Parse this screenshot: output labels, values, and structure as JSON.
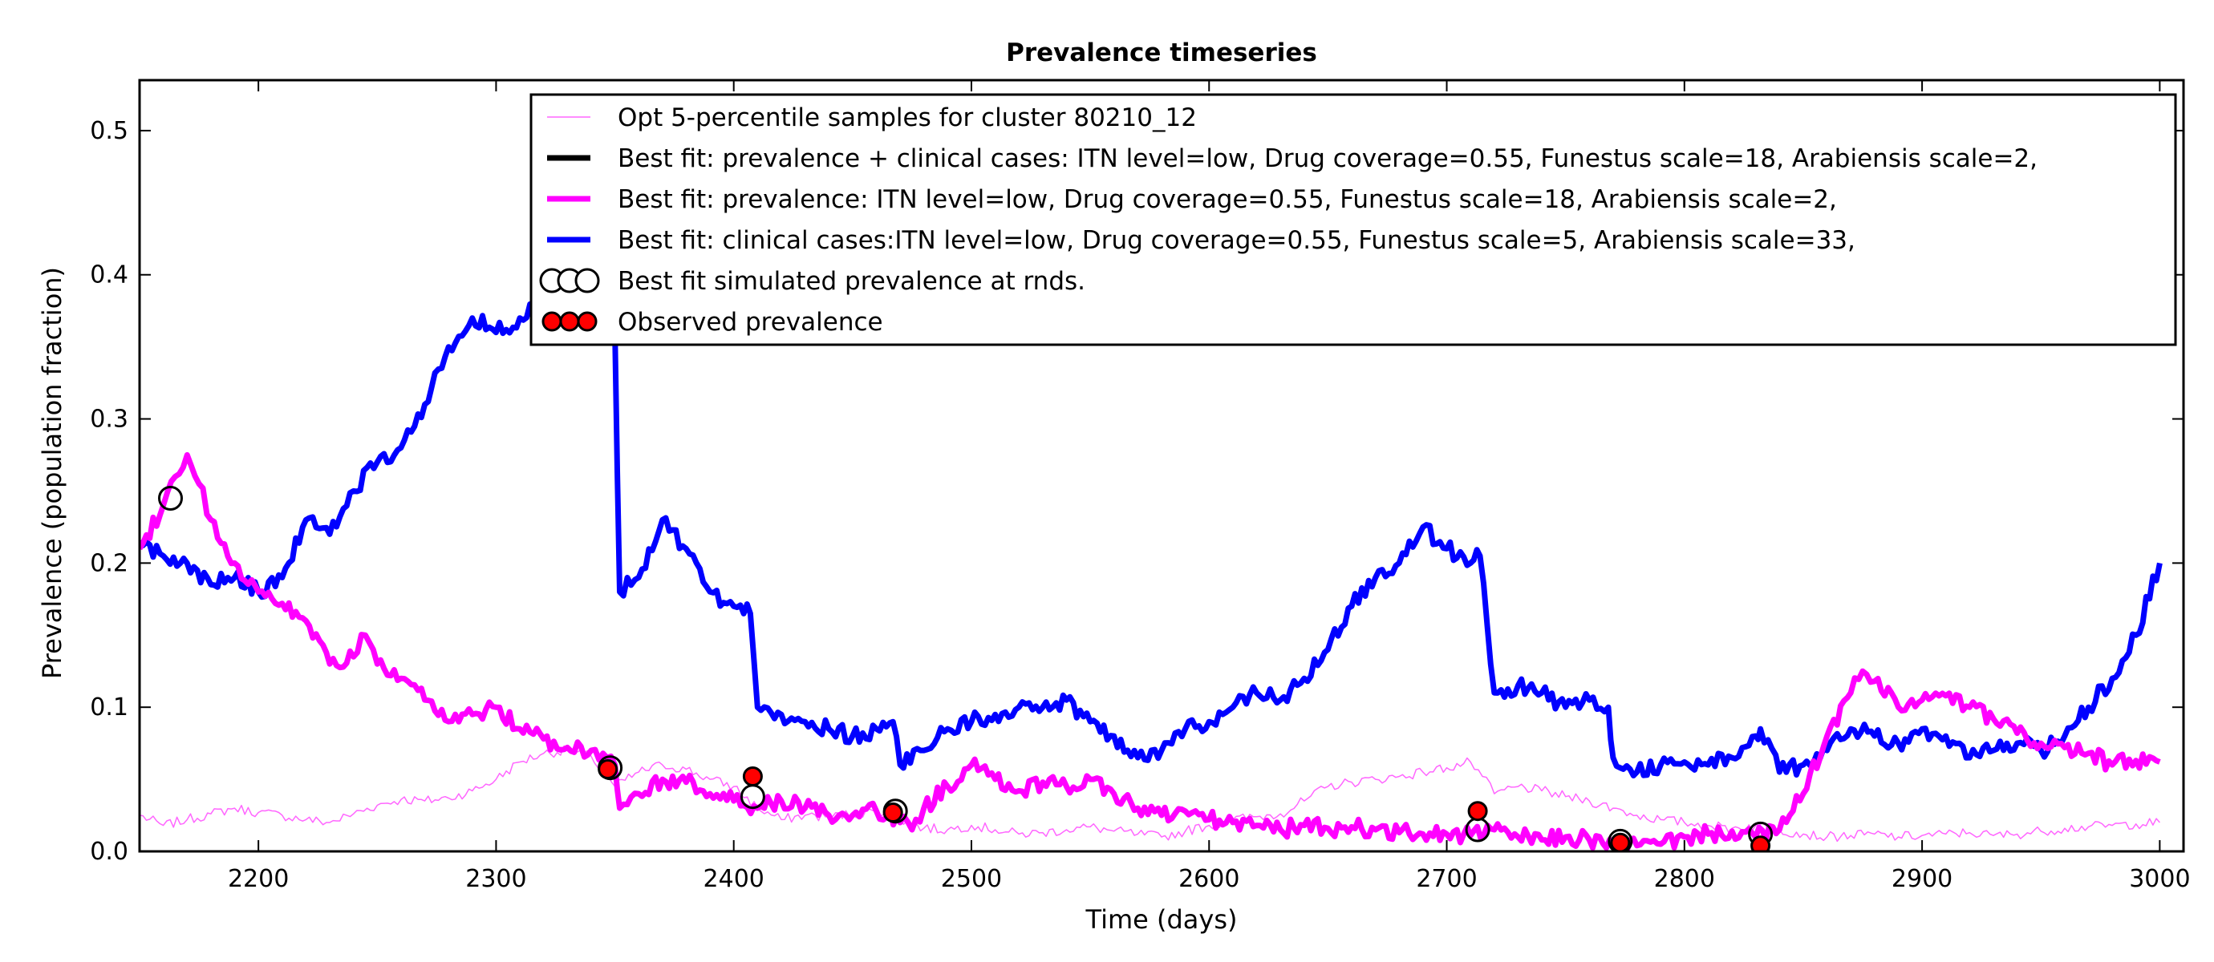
{
  "chart_data": {
    "type": "line",
    "title": "Prevalence timeseries",
    "xlabel": "Time (days)",
    "ylabel": "Prevalence (population fraction)",
    "xlim": [
      2150,
      3010
    ],
    "ylim": [
      0.0,
      0.535
    ],
    "xticks": [
      {
        "value": 2200,
        "label": "2200"
      },
      {
        "value": 2300,
        "label": "2300"
      },
      {
        "value": 2400,
        "label": "2400"
      },
      {
        "value": 2500,
        "label": "2500"
      },
      {
        "value": 2600,
        "label": "2600"
      },
      {
        "value": 2700,
        "label": "2700"
      },
      {
        "value": 2800,
        "label": "2800"
      },
      {
        "value": 2900,
        "label": "2900"
      },
      {
        "value": 3000,
        "label": "3000"
      }
    ],
    "yticks": [
      {
        "value": 0.0,
        "label": "0.0"
      },
      {
        "value": 0.1,
        "label": "0.1"
      },
      {
        "value": 0.2,
        "label": "0.2"
      },
      {
        "value": 0.3,
        "label": "0.3"
      },
      {
        "value": 0.4,
        "label": "0.4"
      },
      {
        "value": 0.5,
        "label": "0.5"
      }
    ],
    "grid": false,
    "legend_placement": "top-right",
    "series": [
      {
        "name": "Opt 5-percentile samples for cluster 80210_12",
        "kind": "line",
        "color": "#ff66ff",
        "thin": true,
        "x": [
          2150,
          2160,
          2170,
          2180,
          2190,
          2200,
          2210,
          2220,
          2230,
          2240,
          2250,
          2260,
          2270,
          2280,
          2290,
          2300,
          2310,
          2320,
          2330,
          2340,
          2350,
          2360,
          2370,
          2380,
          2390,
          2400,
          2410,
          2420,
          2430,
          2440,
          2450,
          2460,
          2470,
          2480,
          2490,
          2500,
          2510,
          2520,
          2530,
          2540,
          2550,
          2560,
          2570,
          2580,
          2590,
          2600,
          2610,
          2620,
          2630,
          2640,
          2650,
          2660,
          2670,
          2680,
          2690,
          2700,
          2710,
          2715,
          2720,
          2730,
          2740,
          2750,
          2760,
          2770,
          2780,
          2790,
          2800,
          2810,
          2820,
          2830,
          2840,
          2850,
          2860,
          2870,
          2880,
          2890,
          2900,
          2910,
          2920,
          2930,
          2940,
          2950,
          2960,
          2970,
          2980,
          2990,
          3000
        ],
        "y": [
          0.025,
          0.018,
          0.022,
          0.026,
          0.03,
          0.027,
          0.025,
          0.022,
          0.02,
          0.026,
          0.032,
          0.036,
          0.035,
          0.037,
          0.042,
          0.05,
          0.062,
          0.068,
          0.07,
          0.066,
          0.045,
          0.055,
          0.06,
          0.057,
          0.05,
          0.045,
          0.03,
          0.022,
          0.025,
          0.024,
          0.026,
          0.028,
          0.022,
          0.016,
          0.015,
          0.018,
          0.015,
          0.012,
          0.013,
          0.015,
          0.017,
          0.014,
          0.012,
          0.01,
          0.014,
          0.018,
          0.022,
          0.024,
          0.026,
          0.035,
          0.045,
          0.048,
          0.05,
          0.052,
          0.055,
          0.058,
          0.062,
          0.052,
          0.04,
          0.045,
          0.042,
          0.038,
          0.035,
          0.03,
          0.025,
          0.022,
          0.02,
          0.018,
          0.016,
          0.018,
          0.015,
          0.012,
          0.01,
          0.011,
          0.012,
          0.01,
          0.011,
          0.012,
          0.013,
          0.011,
          0.012,
          0.014,
          0.016,
          0.017,
          0.018,
          0.019,
          0.02
        ]
      },
      {
        "name": "Best fit: prevalence + clinical cases: ITN level=low, Drug coverage=0.55, Funestus scale=18, Arabiensis scale=2,",
        "kind": "line",
        "color": "#000000",
        "thin": false,
        "x": [],
        "y": []
      },
      {
        "name": "Best fit: prevalence: ITN level=low, Drug coverage=0.55, Funestus scale=18, Arabiensis scale=2,",
        "kind": "line",
        "color": "#ff00ff",
        "thin": false,
        "x": [
          2150,
          2160,
          2165,
          2170,
          2175,
          2180,
          2190,
          2200,
          2210,
          2220,
          2230,
          2240,
          2245,
          2250,
          2260,
          2270,
          2280,
          2290,
          2300,
          2310,
          2320,
          2330,
          2340,
          2345,
          2350,
          2352,
          2360,
          2370,
          2380,
          2390,
          2400,
          2410,
          2420,
          2430,
          2440,
          2450,
          2460,
          2470,
          2475,
          2480,
          2490,
          2500,
          2510,
          2520,
          2530,
          2540,
          2550,
          2560,
          2570,
          2580,
          2590,
          2600,
          2610,
          2620,
          2630,
          2640,
          2650,
          2660,
          2670,
          2680,
          2690,
          2700,
          2710,
          2720,
          2730,
          2740,
          2750,
          2760,
          2770,
          2780,
          2790,
          2800,
          2810,
          2820,
          2830,
          2840,
          2850,
          2860,
          2870,
          2875,
          2880,
          2890,
          2900,
          2910,
          2920,
          2930,
          2940,
          2950,
          2960,
          2970,
          2980,
          2990,
          3000
        ],
        "y": [
          0.21,
          0.24,
          0.26,
          0.275,
          0.255,
          0.23,
          0.2,
          0.18,
          0.172,
          0.16,
          0.13,
          0.135,
          0.15,
          0.13,
          0.12,
          0.105,
          0.09,
          0.095,
          0.1,
          0.085,
          0.078,
          0.072,
          0.07,
          0.068,
          0.06,
          0.03,
          0.04,
          0.05,
          0.048,
          0.04,
          0.035,
          0.03,
          0.035,
          0.03,
          0.025,
          0.025,
          0.028,
          0.02,
          0.015,
          0.03,
          0.045,
          0.06,
          0.05,
          0.042,
          0.048,
          0.045,
          0.05,
          0.04,
          0.03,
          0.025,
          0.028,
          0.022,
          0.02,
          0.018,
          0.015,
          0.018,
          0.016,
          0.017,
          0.015,
          0.013,
          0.012,
          0.012,
          0.011,
          0.015,
          0.01,
          0.008,
          0.01,
          0.008,
          0.005,
          0.004,
          0.005,
          0.01,
          0.012,
          0.014,
          0.01,
          0.015,
          0.04,
          0.08,
          0.11,
          0.125,
          0.118,
          0.1,
          0.105,
          0.108,
          0.1,
          0.092,
          0.082,
          0.075,
          0.072,
          0.068,
          0.06,
          0.063,
          0.062
        ]
      },
      {
        "name": "Best fit: clinical cases:ITN level=low, Drug coverage=0.55, Funestus scale=5, Arabiensis scale=33,",
        "kind": "line",
        "color": "#0000ff",
        "thin": false,
        "x": [
          2150,
          2160,
          2170,
          2180,
          2190,
          2200,
          2210,
          2220,
          2230,
          2240,
          2250,
          2260,
          2270,
          2280,
          2290,
          2300,
          2310,
          2320,
          2330,
          2340,
          2345,
          2350,
          2352,
          2360,
          2370,
          2380,
          2390,
          2400,
          2407,
          2410,
          2420,
          2430,
          2440,
          2450,
          2460,
          2467,
          2470,
          2480,
          2490,
          2500,
          2510,
          2520,
          2530,
          2540,
          2550,
          2560,
          2570,
          2580,
          2590,
          2600,
          2610,
          2620,
          2630,
          2640,
          2650,
          2660,
          2670,
          2680,
          2690,
          2700,
          2710,
          2714,
          2720,
          2730,
          2740,
          2750,
          2760,
          2768,
          2770,
          2780,
          2790,
          2800,
          2810,
          2820,
          2830,
          2832,
          2840,
          2850,
          2860,
          2870,
          2880,
          2890,
          2900,
          2910,
          2920,
          2930,
          2940,
          2950,
          2960,
          2970,
          2980,
          2990,
          3000
        ],
        "y": [
          0.215,
          0.205,
          0.2,
          0.185,
          0.19,
          0.18,
          0.19,
          0.23,
          0.22,
          0.25,
          0.27,
          0.28,
          0.31,
          0.35,
          0.37,
          0.36,
          0.37,
          0.39,
          0.4,
          0.4,
          0.42,
          0.36,
          0.18,
          0.19,
          0.23,
          0.21,
          0.18,
          0.17,
          0.165,
          0.1,
          0.095,
          0.09,
          0.085,
          0.08,
          0.085,
          0.09,
          0.06,
          0.07,
          0.085,
          0.09,
          0.095,
          0.1,
          0.1,
          0.105,
          0.09,
          0.08,
          0.065,
          0.07,
          0.085,
          0.09,
          0.1,
          0.11,
          0.105,
          0.12,
          0.14,
          0.17,
          0.19,
          0.2,
          0.225,
          0.21,
          0.2,
          0.205,
          0.11,
          0.115,
          0.11,
          0.1,
          0.105,
          0.1,
          0.065,
          0.055,
          0.06,
          0.062,
          0.06,
          0.065,
          0.08,
          0.085,
          0.055,
          0.06,
          0.07,
          0.085,
          0.08,
          0.075,
          0.085,
          0.08,
          0.065,
          0.07,
          0.075,
          0.07,
          0.08,
          0.1,
          0.12,
          0.15,
          0.2
        ]
      },
      {
        "name": "Best fit simulated prevalence at rnds.",
        "kind": "marker",
        "color": "#ffffff",
        "stroke": "#000000",
        "x": [
          2163,
          2348,
          2408,
          2468,
          2713,
          2773,
          2832
        ],
        "y": [
          0.245,
          0.058,
          0.038,
          0.028,
          0.015,
          0.007,
          0.012
        ]
      },
      {
        "name": "Observed prevalence",
        "kind": "marker",
        "color": "#ff0000",
        "stroke": "#000000",
        "x": [
          2347,
          2408,
          2467,
          2713,
          2773,
          2832
        ],
        "y": [
          0.057,
          0.052,
          0.027,
          0.028,
          0.006,
          0.004
        ]
      }
    ]
  }
}
